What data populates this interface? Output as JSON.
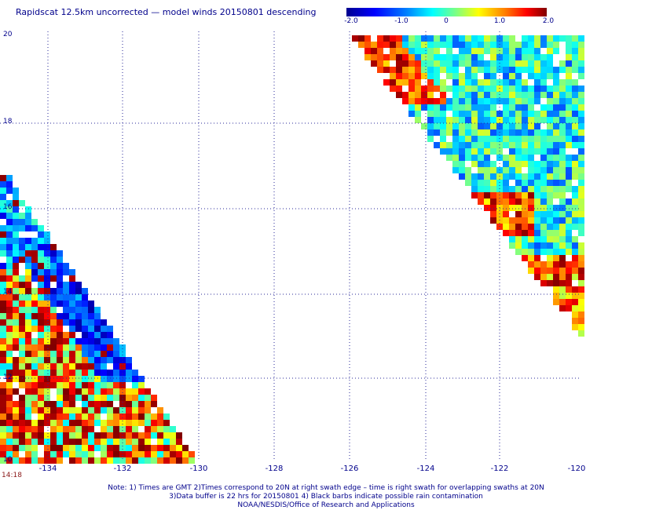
{
  "title": "Rapidscat 12.5km uncorrected — model winds 20150801 descending",
  "colorbar": {
    "ticks": [
      "-2.0",
      "-1.0",
      "0",
      "1.0",
      "2.0"
    ],
    "range": [
      -2.0,
      2.0
    ],
    "colors": [
      "#00008f",
      "#0000ff",
      "#0080ff",
      "#00ffff",
      "#80ff80",
      "#ffff00",
      "#ff8000",
      "#ff0000",
      "#800000"
    ]
  },
  "axes": {
    "x_ticks": [
      "-134",
      "-132",
      "-130",
      "-128",
      "-126",
      "-124",
      "-122",
      "-120"
    ],
    "y_ticks": [
      "20",
      "18",
      "16",
      "14",
      "12",
      "10"
    ],
    "x_range": [
      -135,
      -120
    ],
    "y_range": [
      10,
      20
    ],
    "grid": "dotted"
  },
  "timestamp": "14:18",
  "notes": [
    "Note: 1) Times are GMT 2)Times correspond to 20N at right swath edge – time is right swath for overlapping swaths at 20N",
    "3)Data buffer is 22 hrs for 20150801 4) Black barbs indicate possible rain contamination",
    "NOAA/NESDIS/Office of Research and Applications"
  ]
}
